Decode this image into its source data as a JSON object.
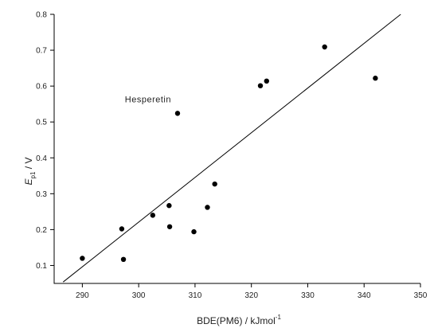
{
  "chart_data": {
    "type": "scatter",
    "xlabel": "BDE(PM6) / kJmol",
    "xlabel_sup": "-1",
    "ylabel_main": "E",
    "ylabel_sub": "p1",
    "ylabel_unit": " / V",
    "xlim": [
      285,
      350
    ],
    "ylim": [
      0.05,
      0.8
    ],
    "x_ticks": [
      290,
      300,
      310,
      320,
      330,
      340,
      350
    ],
    "y_ticks": [
      0.1,
      0.2,
      0.3,
      0.4,
      0.5,
      0.6,
      0.7,
      0.8
    ],
    "x_tick_labels": [
      "290",
      "300",
      "310",
      "320",
      "330",
      "340",
      "350"
    ],
    "y_tick_labels": [
      "0.1",
      "0.2",
      "0.3",
      "0.4",
      "0.5",
      "0.6",
      "0.7",
      "0.8"
    ],
    "grid": false,
    "points": [
      {
        "x": 290.0,
        "y": 0.12
      },
      {
        "x": 297.0,
        "y": 0.202
      },
      {
        "x": 297.3,
        "y": 0.117
      },
      {
        "x": 302.5,
        "y": 0.24
      },
      {
        "x": 305.4,
        "y": 0.267
      },
      {
        "x": 305.5,
        "y": 0.208
      },
      {
        "x": 306.9,
        "y": 0.524
      },
      {
        "x": 309.8,
        "y": 0.194
      },
      {
        "x": 312.2,
        "y": 0.262
      },
      {
        "x": 313.5,
        "y": 0.327
      },
      {
        "x": 321.6,
        "y": 0.601
      },
      {
        "x": 322.7,
        "y": 0.614
      },
      {
        "x": 333.0,
        "y": 0.709
      },
      {
        "x": 342.0,
        "y": 0.622
      }
    ],
    "fit_line": {
      "x": [
        286.6,
        346.5
      ],
      "y": [
        0.054,
        0.8
      ]
    },
    "annotations": [
      {
        "text": "Hesperetin",
        "x": 306.9,
        "y": 0.524
      }
    ]
  }
}
